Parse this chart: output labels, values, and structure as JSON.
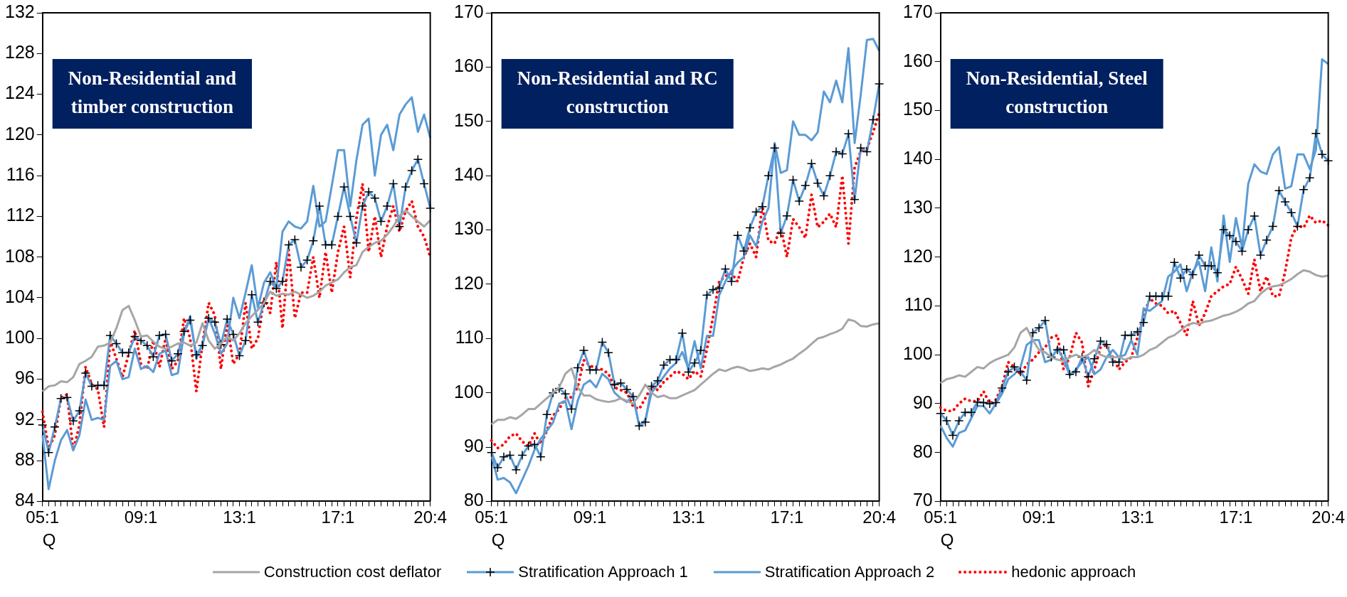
{
  "chart_data": [
    {
      "type": "line",
      "title": "Non-Residential and timber construction",
      "xlabel": "Q",
      "categories": [
        "05:1",
        null,
        null,
        null,
        null,
        null,
        null,
        null,
        null,
        null,
        null,
        null,
        null,
        null,
        null,
        null,
        "09:1",
        null,
        null,
        null,
        null,
        null,
        null,
        null,
        null,
        null,
        null,
        null,
        null,
        null,
        null,
        null,
        "13:1",
        null,
        null,
        null,
        null,
        null,
        null,
        null,
        null,
        null,
        null,
        null,
        null,
        null,
        null,
        null,
        "17:1",
        null,
        null,
        null,
        null,
        null,
        null,
        null,
        null,
        null,
        null,
        null,
        null,
        null,
        null,
        "20:4"
      ],
      "ylim": [
        84,
        132
      ],
      "yticks": [
        84,
        88,
        92,
        96,
        100,
        104,
        108,
        112,
        116,
        120,
        124,
        128,
        132
      ],
      "legend": "bottom",
      "series": [
        {
          "name": "Construction cost deflator",
          "color": "#a6a6a6",
          "values": [
            94.8,
            95.3,
            95.4,
            95.8,
            95.7,
            96.2,
            97.5,
            97.8,
            98.2,
            99.2,
            99.3,
            99.6,
            101,
            102.8,
            103.2,
            101.8,
            100.2,
            100.3,
            99.7,
            99.2,
            99.0,
            99.2,
            99.5,
            99.6,
            99.3,
            99.6,
            101.5,
            99.8,
            99.0,
            99.5,
            100.2,
            99.8,
            100.5,
            101.5,
            102.2,
            102.8,
            103.5,
            104.6,
            104.2,
            104.4,
            104.3,
            104.6,
            104.3,
            104.0,
            104.2,
            104.6,
            105.2,
            105.5,
            105.8,
            106.5,
            107.0,
            107.2,
            108.5,
            109.0,
            109.4,
            109.6,
            110.2,
            111.0,
            112.0,
            112.6,
            112.0,
            111.5,
            111.0,
            111.6
          ]
        },
        {
          "name": "Stratification Approach 1",
          "color": "#5b9bd5",
          "marker": "cross",
          "values": [
            91.5,
            88.8,
            91.3,
            94.1,
            94.2,
            91.9,
            92.9,
            96.6,
            95.3,
            95.4,
            95.4,
            100.3,
            99.5,
            98.6,
            98.6,
            100.2,
            99.8,
            99.3,
            98.2,
            100.3,
            100.4,
            97.8,
            98.5,
            100.7,
            101.8,
            98.4,
            99.3,
            102.0,
            101.6,
            99.4,
            101.9,
            100.4,
            98.3,
            99.8,
            104.3,
            101.6,
            103.5,
            105.6,
            104.9,
            105.6,
            109.2,
            109.7,
            107.0,
            107.7,
            109.6,
            113.0,
            109.2,
            109.2,
            112.0,
            114.9,
            112.0,
            109.4,
            113.0,
            114.4,
            113.8,
            111.5,
            113.0,
            115.2,
            111.0,
            114.9,
            116.5,
            117.6,
            115.2,
            112.8
          ]
        },
        {
          "name": "Stratification Approach 2",
          "color": "#5b9bd5",
          "values": [
            90.5,
            85.2,
            88.0,
            90.0,
            91.0,
            89.0,
            90.5,
            94.0,
            92.0,
            92.2,
            92.0,
            97.3,
            97.8,
            96.0,
            96.2,
            99.0,
            97.0,
            97.3,
            96.7,
            98.5,
            98.8,
            96.4,
            96.6,
            100.5,
            102.2,
            98.0,
            99.5,
            102.0,
            100.5,
            98.5,
            99.5,
            104.0,
            102.0,
            104.5,
            107.2,
            103.0,
            105.5,
            106.5,
            105.0,
            110.5,
            111.5,
            111.0,
            110.8,
            111.5,
            115.0,
            111.0,
            111.5,
            115.0,
            118.5,
            118.5,
            113.0,
            117.5,
            121.0,
            121.6,
            116.0,
            120.0,
            121.0,
            118.5,
            122.0,
            123.0,
            123.7,
            120.3,
            122.0,
            119.7
          ]
        },
        {
          "name": "hedonic approach",
          "color": "#ff0000",
          "line_style": "dotted",
          "values": [
            92.8,
            89.2,
            90.5,
            94.2,
            94.5,
            89.0,
            91.5,
            97.2,
            95.5,
            95.0,
            91.3,
            99.8,
            98.0,
            96.2,
            98.5,
            100.8,
            97.5,
            97.0,
            99.8,
            97.2,
            100.0,
            97.0,
            97.8,
            102.0,
            100.0,
            94.8,
            99.5,
            103.5,
            102.3,
            97.0,
            101.5,
            97.5,
            98.5,
            103.5,
            99.0,
            100.0,
            104.0,
            102.5,
            107.5,
            101.0,
            108.7,
            102.0,
            104.5,
            104.5,
            108.0,
            104.0,
            108.5,
            104.5,
            108.5,
            111.0,
            106.0,
            111.8,
            115.2,
            108.5,
            112.0,
            108.0,
            111.0,
            113.0,
            110.5,
            112.5,
            113.5,
            111.0,
            110.0,
            108.0
          ]
        }
      ]
    },
    {
      "type": "line",
      "title": "Non-Residential and RC construction",
      "xlabel": "Q",
      "categories": [
        "05:1",
        null,
        null,
        null,
        null,
        null,
        null,
        null,
        null,
        null,
        null,
        null,
        null,
        null,
        null,
        null,
        "09:1",
        null,
        null,
        null,
        null,
        null,
        null,
        null,
        null,
        null,
        null,
        null,
        null,
        null,
        null,
        null,
        "13:1",
        null,
        null,
        null,
        null,
        null,
        null,
        null,
        null,
        null,
        null,
        null,
        null,
        null,
        null,
        null,
        "17:1",
        null,
        null,
        null,
        null,
        null,
        null,
        null,
        null,
        null,
        null,
        null,
        null,
        null,
        null,
        "20:4"
      ],
      "ylim": [
        80,
        170
      ],
      "yticks": [
        80,
        90,
        100,
        110,
        120,
        130,
        140,
        150,
        160,
        170
      ],
      "series": [
        {
          "color": "#a6a6a6",
          "values": [
            94.2,
            95.0,
            95.0,
            95.5,
            95.2,
            96.0,
            97.0,
            97.0,
            98.0,
            99.0,
            100.0,
            101.0,
            103.5,
            104.5,
            101.0,
            99.5,
            99.5,
            98.8,
            98.5,
            98.3,
            98.5,
            99.0,
            98.5,
            98.0,
            99.5,
            101.5,
            100.0,
            99.2,
            99.5,
            99.0,
            99.0,
            99.5,
            100.0,
            100.5,
            101.5,
            102.5,
            103.5,
            104.3,
            104.0,
            104.5,
            104.8,
            104.5,
            104.0,
            104.2,
            104.5,
            104.3,
            104.8,
            105.2,
            105.8,
            106.3,
            107.2,
            108.0,
            109.0,
            110.0,
            110.3,
            110.8,
            111.2,
            111.8,
            113.5,
            113.2,
            112.3,
            112.2,
            112.6,
            112.8
          ]
        },
        {
          "color": "#5b9bd5",
          "marker": "cross",
          "values": [
            89.0,
            86.2,
            88.2,
            88.5,
            85.8,
            88.5,
            90.2,
            90.5,
            88.2,
            96.0,
            100.0,
            100.8,
            99.8,
            97.0,
            104.6,
            107.8,
            104.2,
            104.2,
            109.3,
            107.4,
            101.5,
            101.8,
            100.6,
            99.3,
            93.9,
            94.6,
            101.2,
            102.2,
            105.1,
            106.1,
            106.1,
            111.0,
            103.8,
            105.5,
            107.8,
            118.0,
            119.0,
            119.3,
            122.8,
            120.5,
            129.0,
            126.1,
            130.4,
            133.3,
            134.3,
            140.0,
            145.1,
            129.4,
            132.6,
            139.2,
            135.3,
            138.2,
            142.2,
            138.6,
            136.3,
            140.0,
            144.4,
            144.0,
            147.7,
            135.6,
            145.1,
            144.4,
            150.3,
            156.9
          ]
        },
        {
          "color": "#5b9bd5",
          "values": [
            88.5,
            84.0,
            84.3,
            83.5,
            81.5,
            84.0,
            86.5,
            89.5,
            91.5,
            93.0,
            94.5,
            98.0,
            98.5,
            93.3,
            98.5,
            101.5,
            102.3,
            101.0,
            103.5,
            102.5,
            100.0,
            99.0,
            98.3,
            99.5,
            94.0,
            95.0,
            100.0,
            101.5,
            103.0,
            104.5,
            105.5,
            107.5,
            104.5,
            109.5,
            104.5,
            110.5,
            110.5,
            118.0,
            120.5,
            122.5,
            124.0,
            125.0,
            129.0,
            127.0,
            131.5,
            134.0,
            146.0,
            140.5,
            141.0,
            150.0,
            147.5,
            147.5,
            146.5,
            148.0,
            155.5,
            153.5,
            157.5,
            153.5,
            163.5,
            146.0,
            155.0,
            165.0,
            165.2,
            163.0
          ]
        },
        {
          "color": "#ff0000",
          "line_style": "dotted",
          "values": [
            91.2,
            89.8,
            90.5,
            92.0,
            92.5,
            91.0,
            90.2,
            92.5,
            90.5,
            93.0,
            95.8,
            97.0,
            99.0,
            99.2,
            101.0,
            106.0,
            105.0,
            104.5,
            104.3,
            103.5,
            101.0,
            100.5,
            100.0,
            97.5,
            97.0,
            99.0,
            101.2,
            100.5,
            102.0,
            103.0,
            104.0,
            103.5,
            102.5,
            104.0,
            103.0,
            108.0,
            114.0,
            120.5,
            121.5,
            122.0,
            120.5,
            125.0,
            127.5,
            125.0,
            134.5,
            128.0,
            127.5,
            130.5,
            125.0,
            132.0,
            130.5,
            128.5,
            136.5,
            130.5,
            131.5,
            133.0,
            130.5,
            140.0,
            127.5,
            141.5,
            144.5,
            145.0,
            148.0,
            151.5
          ]
        }
      ]
    },
    {
      "type": "line",
      "title": "Non-Residential, Steel construction",
      "xlabel": "Q",
      "categories": [
        "05:1",
        null,
        null,
        null,
        null,
        null,
        null,
        null,
        null,
        null,
        null,
        null,
        null,
        null,
        null,
        null,
        "09:1",
        null,
        null,
        null,
        null,
        null,
        null,
        null,
        null,
        null,
        null,
        null,
        null,
        null,
        null,
        null,
        "13:1",
        null,
        null,
        null,
        null,
        null,
        null,
        null,
        null,
        null,
        null,
        null,
        null,
        null,
        null,
        null,
        "17:1",
        null,
        null,
        null,
        null,
        null,
        null,
        null,
        null,
        null,
        null,
        null,
        null,
        null,
        null,
        "20:4"
      ],
      "ylim": [
        70,
        170
      ],
      "yticks": [
        70,
        80,
        90,
        100,
        110,
        120,
        130,
        140,
        150,
        160,
        170
      ],
      "series": [
        {
          "color": "#a6a6a6",
          "values": [
            94.2,
            95.0,
            95.3,
            95.8,
            95.5,
            96.5,
            97.5,
            97.2,
            98.3,
            99.0,
            99.5,
            100.0,
            101.5,
            104.5,
            105.5,
            103.0,
            101.0,
            100.5,
            99.5,
            99.0,
            98.7,
            99.5,
            100.0,
            99.5,
            100.0,
            101.0,
            100.0,
            99.5,
            99.5,
            99.5,
            99.0,
            99.5,
            99.5,
            100.0,
            101.0,
            101.5,
            102.5,
            103.5,
            104.0,
            105.0,
            106.0,
            106.5,
            106.3,
            106.8,
            107.0,
            107.5,
            108.0,
            108.3,
            108.8,
            109.5,
            110.5,
            111.0,
            112.5,
            113.5,
            114.0,
            114.2,
            114.8,
            115.5,
            116.5,
            117.3,
            117.0,
            116.3,
            116.0,
            116.2
          ]
        },
        {
          "color": "#5b9bd5",
          "marker": "cross",
          "values": [
            88.0,
            86.5,
            83.5,
            86.5,
            88.2,
            88.2,
            90.3,
            90.2,
            90.0,
            90.2,
            93.2,
            96.5,
            97.5,
            96.5,
            94.8,
            104.5,
            105.5,
            107.0,
            99.5,
            101.0,
            101.0,
            96.0,
            96.5,
            99.5,
            95.5,
            99.2,
            102.8,
            102.1,
            98.5,
            98.5,
            104.0,
            104.0,
            104.7,
            106.6,
            112.0,
            112.0,
            112.0,
            112.0,
            118.9,
            115.7,
            117.5,
            116.4,
            120.4,
            118.2,
            118.2,
            116.8,
            125.6,
            124.4,
            123.2,
            121.2,
            125.6,
            128.4,
            120.4,
            123.5,
            126.3,
            133.6,
            131.3,
            129.1,
            126.3,
            133.8,
            136.2,
            145.3,
            141.0,
            139.7
          ]
        },
        {
          "color": "#5b9bd5",
          "values": [
            85.5,
            83.0,
            81.2,
            84.0,
            84.5,
            87.0,
            89.5,
            89.5,
            88.0,
            90.0,
            92.0,
            95.0,
            96.0,
            97.5,
            102.0,
            103.0,
            103.0,
            98.5,
            99.0,
            101.5,
            99.0,
            95.8,
            97.0,
            98.5,
            99.5,
            96.0,
            97.0,
            99.5,
            101.0,
            99.5,
            100.0,
            103.0,
            100.0,
            109.5,
            109.0,
            110.0,
            111.0,
            116.0,
            117.0,
            118.5,
            113.0,
            117.0,
            119.0,
            113.0,
            122.0,
            115.0,
            128.5,
            119.0,
            128.0,
            122.0,
            135.0,
            139.0,
            137.5,
            137.0,
            141.0,
            142.5,
            134.0,
            134.5,
            141.0,
            141.0,
            138.0,
            142.0,
            160.5,
            159.5
          ]
        },
        {
          "color": "#ff0000",
          "line_style": "dotted",
          "values": [
            89.2,
            88.5,
            88.5,
            90.0,
            91.0,
            90.5,
            90.5,
            92.5,
            90.0,
            90.8,
            93.5,
            98.5,
            97.5,
            96.0,
            98.0,
            99.0,
            100.5,
            101.5,
            103.5,
            104.0,
            97.0,
            99.5,
            104.5,
            102.5,
            93.5,
            97.0,
            101.5,
            102.0,
            99.5,
            97.0,
            98.5,
            99.5,
            103.5,
            108.0,
            111.5,
            110.5,
            110.0,
            108.5,
            109.0,
            106.5,
            104.0,
            111.0,
            106.0,
            108.5,
            112.0,
            113.0,
            114.0,
            114.5,
            118.0,
            115.5,
            112.5,
            119.5,
            113.0,
            116.0,
            112.0,
            112.0,
            117.0,
            124.0,
            126.5,
            126.0,
            128.5,
            127.0,
            127.5,
            126.5
          ]
        }
      ]
    }
  ]
}
